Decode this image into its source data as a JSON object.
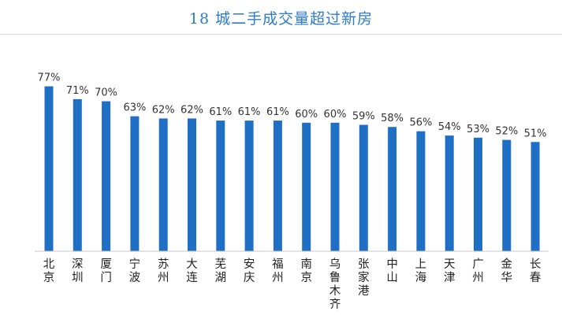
{
  "chart_data": {
    "type": "bar",
    "title": "18 城二手成交量超过新房",
    "categories": [
      "北京",
      "深圳",
      "厦门",
      "宁波",
      "苏州",
      "大连",
      "芜湖",
      "安庆",
      "福州",
      "南京",
      "乌鲁木齐",
      "张家港",
      "中山",
      "上海",
      "天津",
      "广州",
      "金华",
      "长春"
    ],
    "values": [
      77,
      71,
      70,
      63,
      62,
      62,
      61,
      61,
      61,
      60,
      60,
      59,
      58,
      56,
      54,
      53,
      52,
      51
    ],
    "value_labels": [
      "77%",
      "71%",
      "70%",
      "63%",
      "62%",
      "62%",
      "61%",
      "61%",
      "61%",
      "60%",
      "60%",
      "59%",
      "58%",
      "56%",
      "54%",
      "53%",
      "52%",
      "51%"
    ],
    "unit": "%",
    "xlabel": "",
    "ylabel": "",
    "ylim": [
      0,
      100
    ],
    "grid": false,
    "bar_color": "#1f6fc5",
    "title_color": "#2c7bc9"
  }
}
